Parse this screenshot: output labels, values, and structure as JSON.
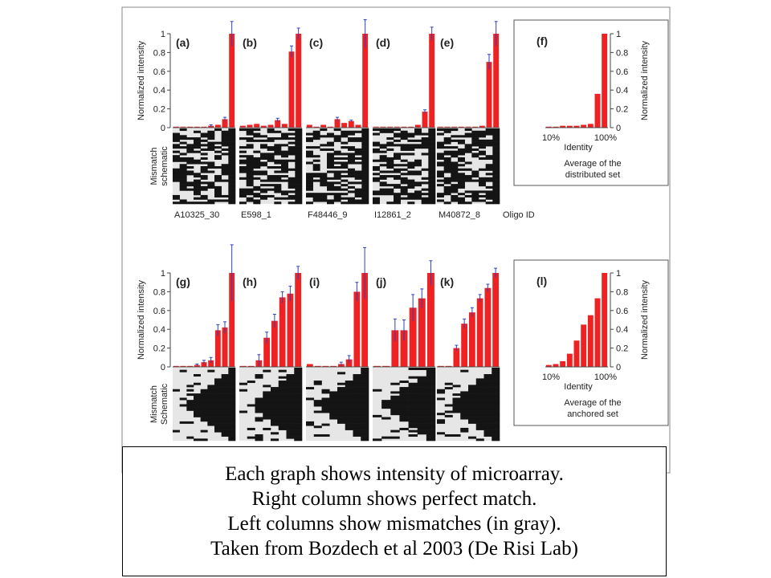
{
  "colors": {
    "bar": "#ee2222",
    "error": "#3040c0",
    "match": "#e6e6e6",
    "mismatch": "#141414",
    "frame": "#555555"
  },
  "labels": {
    "y_axis": "Normalized intensity",
    "schematic_top": [
      "Mismatch",
      "schematic"
    ],
    "schematic_bottom": [
      "Mismatch",
      "Schematic"
    ],
    "oligo_id": "Oligo ID",
    "identity": "Identity",
    "x_low": "10%",
    "x_high": "100%",
    "yticks": [
      "0",
      "0.2",
      "0.4",
      "0.6",
      "0.8",
      "1"
    ]
  },
  "chart_data": [
    {
      "type": "bar",
      "panel": "(a)",
      "oligo": "A10325_30",
      "ylim": [
        0,
        1
      ],
      "values": [
        0.01,
        0.01,
        0.01,
        0.01,
        0.01,
        0.02,
        0.03,
        0.09,
        1.0
      ],
      "errors": [
        0,
        0,
        0,
        0,
        0,
        0.01,
        0,
        0.02,
        0.13
      ]
    },
    {
      "type": "bar",
      "panel": "(b)",
      "oligo": "E598_1",
      "ylim": [
        0,
        1
      ],
      "values": [
        0.02,
        0.03,
        0.04,
        0.02,
        0.03,
        0.08,
        0.04,
        0.81,
        1.0
      ],
      "errors": [
        0,
        0,
        0,
        0,
        0,
        0.02,
        0,
        0.06,
        0.06
      ]
    },
    {
      "type": "bar",
      "panel": "(c)",
      "oligo": "F48446_9",
      "ylim": [
        0,
        1
      ],
      "values": [
        0.03,
        0.01,
        0.03,
        0.01,
        0.09,
        0.05,
        0.07,
        0.03,
        1.0
      ],
      "errors": [
        0,
        0,
        0,
        0,
        0.02,
        0,
        0.01,
        0,
        0.15
      ]
    },
    {
      "type": "bar",
      "panel": "(d)",
      "oligo": "I12861_2",
      "ylim": [
        0,
        1
      ],
      "values": [
        0.01,
        0.01,
        0.01,
        0.01,
        0.01,
        0.01,
        0.03,
        0.17,
        1.0
      ],
      "errors": [
        0,
        0,
        0,
        0,
        0,
        0,
        0,
        0.02,
        0.07
      ]
    },
    {
      "type": "bar",
      "panel": "(e)",
      "oligo": "M40872_8",
      "ylim": [
        0,
        1
      ],
      "values": [
        0.01,
        0.01,
        0.01,
        0.01,
        0.01,
        0.01,
        0.02,
        0.7,
        1.0
      ],
      "errors": [
        0,
        0,
        0,
        0,
        0,
        0,
        0,
        0.08,
        0.13
      ]
    },
    {
      "type": "bar",
      "panel": "(f)",
      "title": "Average of the distributed set",
      "xlabel": "Identity",
      "ylim": [
        0,
        1
      ],
      "values": [
        0.01,
        0.01,
        0.02,
        0.02,
        0.02,
        0.03,
        0.04,
        0.36,
        1.0
      ],
      "errors": []
    },
    {
      "type": "bar",
      "panel": "(g)",
      "ylim": [
        0,
        1
      ],
      "values": [
        0.01,
        0.01,
        0.01,
        0.02,
        0.05,
        0.07,
        0.39,
        0.42,
        1.0
      ],
      "errors": [
        0,
        0,
        0,
        0.01,
        0.02,
        0.03,
        0.06,
        0.06,
        0.3
      ]
    },
    {
      "type": "bar",
      "panel": "(h)",
      "ylim": [
        0,
        1
      ],
      "values": [
        0.01,
        0.01,
        0.07,
        0.31,
        0.49,
        0.74,
        0.78,
        1.0
      ],
      "errors": [
        0,
        0,
        0.06,
        0.06,
        0.07,
        0.06,
        0.08,
        0.07
      ]
    },
    {
      "type": "bar",
      "panel": "(i)",
      "ylim": [
        0,
        1
      ],
      "values": [
        0.03,
        0.01,
        0.01,
        0.01,
        0.03,
        0.08,
        0.8,
        1.0
      ],
      "errors": [
        0,
        0,
        0,
        0,
        0.02,
        0.04,
        0.1,
        0.27
      ]
    },
    {
      "type": "bar",
      "panel": "(j)",
      "ylim": [
        0,
        1
      ],
      "values": [
        0.01,
        0.01,
        0.39,
        0.39,
        0.63,
        0.73,
        1.0
      ],
      "errors": [
        0,
        0,
        0.12,
        0.11,
        0.14,
        0.1,
        0.13
      ]
    },
    {
      "type": "bar",
      "panel": "(k)",
      "ylim": [
        0,
        1
      ],
      "values": [
        0.01,
        0.01,
        0.2,
        0.46,
        0.58,
        0.73,
        0.84,
        1.0
      ],
      "errors": [
        0,
        0,
        0.03,
        0.05,
        0.05,
        0.04,
        0.04,
        0.05
      ]
    },
    {
      "type": "bar",
      "panel": "(l)",
      "title": "Average of the anchored set",
      "xlabel": "Identity",
      "ylim": [
        0,
        1
      ],
      "values": [
        0.02,
        0.03,
        0.06,
        0.14,
        0.28,
        0.45,
        0.55,
        0.73,
        1.0
      ],
      "errors": []
    }
  ],
  "caption": [
    "Each graph shows intensity of microarray.",
    "Right column shows perfect match.",
    "Left columns show mismatches (in gray).",
    "Taken from Bozdech et al 2003 (De Risi Lab)"
  ]
}
